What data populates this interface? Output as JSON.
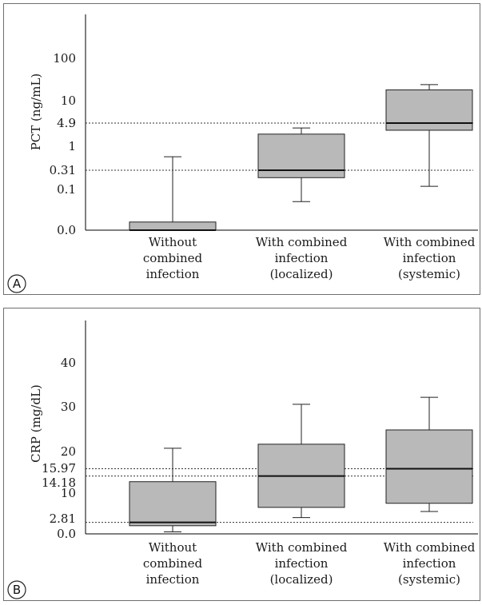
{
  "chart_data": [
    {
      "panel": "A",
      "type": "box",
      "ylabel": "PCT (ng/mL)",
      "scale": "log-like",
      "yticks": [
        "0.0",
        "0.1",
        "0.31",
        "1",
        "4.9",
        "10",
        "100"
      ],
      "categories": [
        [
          "Without",
          "combined",
          "infection"
        ],
        [
          "With combined",
          "infection",
          "(localized)"
        ],
        [
          "With combined",
          "infection",
          "(systemic)"
        ]
      ],
      "boxes": [
        {
          "min": 0.0,
          "q1": 0.0,
          "median": 0.0,
          "q3": 0.02,
          "max": 0.6
        },
        {
          "min": 0.07,
          "q1": 0.2,
          "median": 0.31,
          "q3": 2.3,
          "max": 3.5
        },
        {
          "min": 0.12,
          "q1": 3.0,
          "median": 4.9,
          "q3": 18,
          "max": 24
        }
      ],
      "reference_lines": [
        0.31,
        4.9
      ]
    },
    {
      "panel": "B",
      "type": "box",
      "ylabel": "CRP (mg/dL)",
      "scale": "linear",
      "yticks": [
        "0.0",
        "2.81",
        "10",
        "14.18",
        "15.97",
        "20",
        "30",
        "40"
      ],
      "ylim": [
        0,
        50
      ],
      "categories": [
        [
          "Without",
          "combined",
          "infection"
        ],
        [
          "With combined",
          "infection",
          "(localized)"
        ],
        [
          "With combined",
          "infection",
          "(systemic)"
        ]
      ],
      "boxes": [
        {
          "min": 0.5,
          "q1": 2.0,
          "median": 2.81,
          "q3": 12.8,
          "max": 21.0
        },
        {
          "min": 4.0,
          "q1": 6.5,
          "median": 14.18,
          "q3": 22.0,
          "max": 31.8
        },
        {
          "min": 5.5,
          "q1": 7.5,
          "median": 15.97,
          "q3": 25.5,
          "max": 33.5
        }
      ],
      "reference_lines": [
        2.81,
        14.18,
        15.97
      ]
    }
  ]
}
